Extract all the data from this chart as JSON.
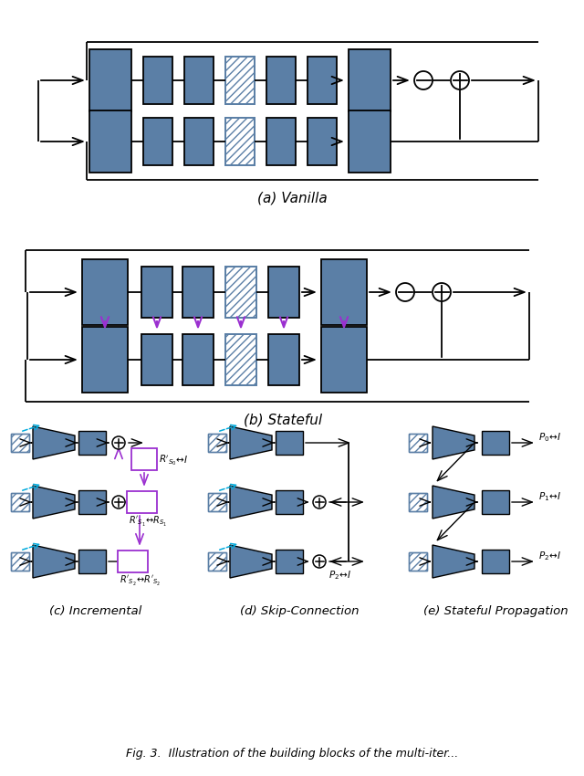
{
  "bg": "#ffffff",
  "box_fc": "#5b7fa6",
  "box_ec": "#000000",
  "pc": "#9b30d0",
  "cc": "#00aadd",
  "lw": 1.3,
  "subtitle_a": "(a) Vanilla",
  "subtitle_b": "(b) Stateful",
  "subtitle_c": "(c) Incremental",
  "subtitle_d": "(d) Skip-Connection",
  "subtitle_e": "(e) Stateful Propagation",
  "caption": "Fig. 3.  Illustration of the building blocks of the multi-iter..."
}
